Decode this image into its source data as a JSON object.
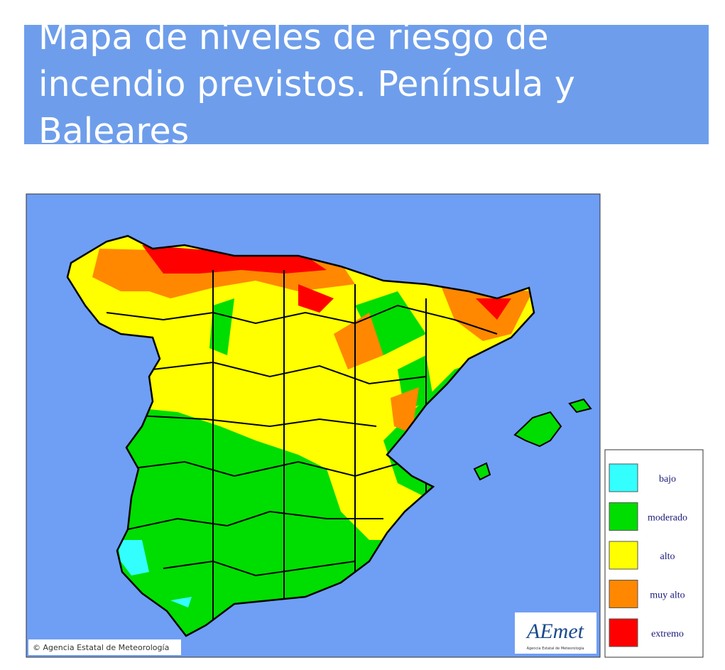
{
  "header": {
    "title": "Mapa de niveles de riesgo de incendio previstos. Península y Baleares"
  },
  "map": {
    "credit": "© Agencia Estatal de Meteorología",
    "logo": {
      "name": "AEmet",
      "subtitle": "Agencia Estatal de Meteorología"
    }
  },
  "legend": {
    "items": [
      {
        "label": "bajo",
        "color": "#33ffff"
      },
      {
        "label": "moderado",
        "color": "#00dd00"
      },
      {
        "label": "alto",
        "color": "#ffff00"
      },
      {
        "label": "muy alto",
        "color": "#ff8800"
      },
      {
        "label": "extremo",
        "color": "#ff0000"
      }
    ]
  }
}
